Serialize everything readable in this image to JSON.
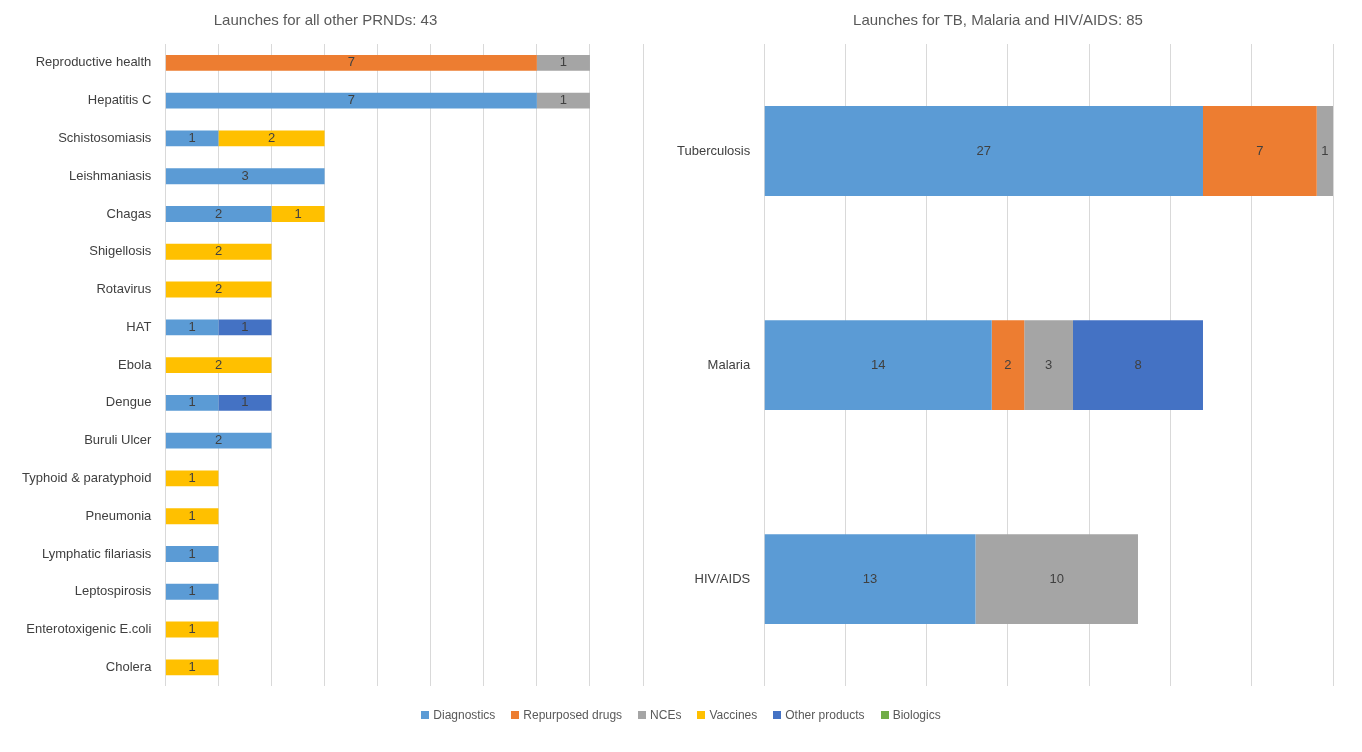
{
  "chart_data": [
    {
      "type": "bar",
      "orientation": "horizontal",
      "stacked": true,
      "title": "Launches for all other PRNDs: 43",
      "categories": [
        "Reproductive health",
        "Hepatitis C",
        "Schistosomiasis",
        "Leishmaniasis",
        "Chagas",
        "Shigellosis",
        "Rotavirus",
        "HAT",
        "Ebola",
        "Dengue",
        "Buruli Ulcer",
        "Typhoid & paratyphoid",
        "Pneumonia",
        "Lymphatic filariasis",
        "Leptospirosis",
        "Enterotoxigenic E.coli",
        "Cholera"
      ],
      "series": [
        {
          "name": "Diagnostics",
          "color": "#5b9bd5",
          "values": [
            null,
            7,
            1,
            3,
            2,
            null,
            null,
            1,
            null,
            1,
            2,
            null,
            null,
            1,
            1,
            null,
            null
          ]
        },
        {
          "name": "Repurposed drugs",
          "color": "#ed7d31",
          "values": [
            7,
            null,
            null,
            null,
            null,
            null,
            null,
            null,
            null,
            null,
            null,
            null,
            null,
            null,
            null,
            null,
            null
          ]
        },
        {
          "name": "NCEs",
          "color": "#a5a5a5",
          "values": [
            1,
            1,
            null,
            null,
            null,
            null,
            null,
            null,
            null,
            null,
            null,
            null,
            null,
            null,
            null,
            null,
            null
          ]
        },
        {
          "name": "Vaccines",
          "color": "#ffc000",
          "values": [
            null,
            null,
            2,
            null,
            1,
            2,
            2,
            null,
            2,
            null,
            null,
            1,
            1,
            null,
            null,
            1,
            1
          ]
        },
        {
          "name": "Other products",
          "color": "#4472c4",
          "values": [
            null,
            null,
            null,
            null,
            null,
            null,
            null,
            1,
            null,
            1,
            null,
            null,
            null,
            null,
            null,
            null,
            null
          ]
        },
        {
          "name": "Biologics",
          "color": "#70ad47",
          "values": [
            null,
            null,
            null,
            null,
            null,
            null,
            null,
            null,
            null,
            null,
            null,
            null,
            null,
            null,
            null,
            null,
            null
          ]
        }
      ],
      "xlim": [
        0,
        9
      ],
      "xticks": [
        {
          "value": 0,
          "label": null
        },
        {
          "value": 1,
          "label": null
        },
        {
          "value": 2,
          "label": null
        },
        {
          "value": 3,
          "label": null
        },
        {
          "value": 4,
          "label": null
        },
        {
          "value": 5,
          "label": null
        },
        {
          "value": 6,
          "label": null
        },
        {
          "value": 7,
          "label": null
        },
        {
          "value": 8,
          "label": null
        },
        {
          "value": 9,
          "label": null
        }
      ],
      "grid": "x",
      "tick_labels": "y",
      "data_labels": true,
      "legend": "bottom"
    },
    {
      "type": "bar",
      "orientation": "horizontal",
      "stacked": true,
      "title": "Launches for TB, Malaria and HIV/AIDS: 85",
      "categories": [
        "Tuberculosis",
        "Malaria",
        "HIV/AIDS"
      ],
      "series": [
        {
          "color": "#5b9bd5",
          "values": [
            27,
            14,
            13
          ]
        },
        {
          "color": "#ed7d31",
          "values": [
            7,
            2,
            null
          ]
        },
        {
          "color": "#a5a5a5",
          "values": [
            1,
            3,
            10
          ]
        },
        {
          "color": "#ffc000",
          "values": [
            null,
            null,
            null
          ]
        },
        {
          "color": "#4472c4",
          "values": [
            null,
            8,
            null
          ]
        },
        {
          "color": "#70ad47",
          "values": [
            null,
            null,
            null
          ]
        }
      ],
      "xlim": [
        0,
        35
      ],
      "xticks": [
        {
          "value": 0,
          "label": null
        },
        {
          "value": 5,
          "label": null
        },
        {
          "value": 10,
          "label": null
        },
        {
          "value": 15,
          "label": null
        },
        {
          "value": 20,
          "label": null
        },
        {
          "value": 25,
          "label": null
        },
        {
          "value": 30,
          "label": null
        },
        {
          "value": 35,
          "label": null
        }
      ],
      "grid": "x",
      "tick_labels": "y",
      "data_labels": true
    }
  ]
}
